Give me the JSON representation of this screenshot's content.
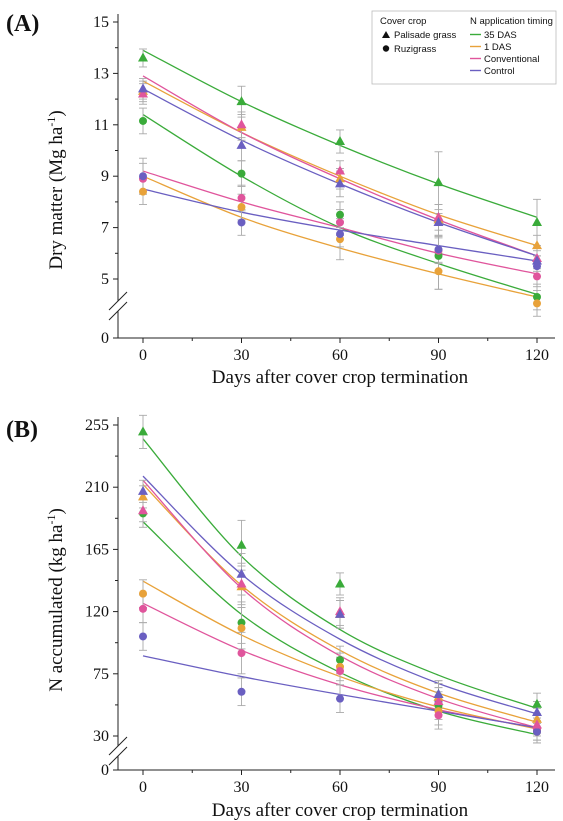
{
  "chart_data": [
    {
      "type": "scatter",
      "panel_label": "(A)",
      "xlabel": "Days after cover crop termination",
      "ylabel_main": "Dry matter (Mg ha",
      "ylabel_sup": "-1",
      "ylabel_end": ")",
      "x": [
        0,
        30,
        60,
        90,
        120
      ],
      "xticks": [
        "0",
        "30",
        "60",
        "90",
        "120"
      ],
      "yticks": [
        5,
        7,
        9,
        11,
        13,
        15
      ],
      "ylim": [
        3.8,
        15
      ],
      "axis_break": true,
      "zero_label": "0",
      "legend": {
        "position": "top-right",
        "cover_crop_title": "Cover crop",
        "cover_crop_items": [
          {
            "label": "Palisade grass",
            "marker": "triangle"
          },
          {
            "label": "Ruzigrass",
            "marker": "circle"
          }
        ],
        "timing_title": "N application timing",
        "timing_items": [
          {
            "label": "35 DAS",
            "color": "#3aab3a"
          },
          {
            "label": "1 DAS",
            "color": "#e8a23a"
          },
          {
            "label": "Conventional",
            "color": "#e0559c"
          },
          {
            "label": "Control",
            "color": "#6a5fc1"
          }
        ]
      },
      "series": [
        {
          "timing": "35 DAS",
          "cover": "Palisade grass",
          "marker": "triangle",
          "color": "#3aab3a",
          "y": [
            13.6,
            11.9,
            10.35,
            8.75,
            7.2
          ],
          "err": [
            0.35,
            0.6,
            0.45,
            1.2,
            0.9
          ],
          "fit": [
            13.9,
            11.9,
            10.2,
            8.7,
            7.4
          ]
        },
        {
          "timing": "1 DAS",
          "cover": "Palisade grass",
          "marker": "triangle",
          "color": "#e8a23a",
          "y": [
            12.3,
            10.9,
            8.9,
            7.3,
            6.3
          ],
          "err": [
            0.4,
            0.5,
            0.4,
            0.6,
            0.4
          ],
          "fit": [
            12.7,
            10.7,
            9.0,
            7.5,
            6.3
          ]
        },
        {
          "timing": "Conventional",
          "cover": "Palisade grass",
          "marker": "triangle",
          "color": "#e0559c",
          "y": [
            12.2,
            11.0,
            9.2,
            7.4,
            5.8
          ],
          "err": [
            0.4,
            0.5,
            0.4,
            0.5,
            0.4
          ],
          "fit": [
            12.9,
            10.7,
            8.9,
            7.3,
            5.9
          ]
        },
        {
          "timing": "Control",
          "cover": "Palisade grass",
          "marker": "triangle",
          "color": "#6a5fc1",
          "y": [
            12.4,
            10.2,
            8.7,
            7.2,
            5.7
          ],
          "err": [
            0.4,
            0.6,
            0.5,
            0.5,
            0.4
          ],
          "fit": [
            12.4,
            10.4,
            8.7,
            7.2,
            5.9
          ]
        },
        {
          "timing": "35 DAS",
          "cover": "Ruzigrass",
          "marker": "circle",
          "color": "#3aab3a",
          "y": [
            11.15,
            9.1,
            7.5,
            5.9,
            4.3
          ],
          "err": [
            0.5,
            0.5,
            0.5,
            1.3,
            0.5
          ],
          "fit": [
            11.4,
            9.0,
            7.0,
            5.6,
            4.4
          ]
        },
        {
          "timing": "1 DAS",
          "cover": "Ruzigrass",
          "marker": "circle",
          "color": "#e8a23a",
          "y": [
            8.4,
            7.8,
            6.55,
            5.3,
            4.05
          ],
          "err": [
            0.5,
            0.5,
            0.8,
            0.7,
            0.5
          ],
          "fit": [
            9.0,
            7.4,
            6.2,
            5.2,
            4.3
          ]
        },
        {
          "timing": "Conventional",
          "cover": "Ruzigrass",
          "marker": "circle",
          "color": "#e0559c",
          "y": [
            8.9,
            8.15,
            7.2,
            6.1,
            5.1
          ],
          "err": [
            0.6,
            0.5,
            0.5,
            0.5,
            0.4
          ],
          "fit": [
            9.2,
            8.0,
            7.0,
            6.0,
            5.2
          ]
        },
        {
          "timing": "Control",
          "cover": "Ruzigrass",
          "marker": "circle",
          "color": "#6a5fc1",
          "y": [
            9.0,
            7.2,
            6.75,
            6.15,
            5.5
          ],
          "err": [
            0.7,
            0.5,
            0.5,
            0.5,
            0.4
          ],
          "fit": [
            8.5,
            7.6,
            6.9,
            6.3,
            5.7
          ]
        }
      ]
    },
    {
      "type": "scatter",
      "panel_label": "(B)",
      "xlabel": "Days after cover crop termination",
      "ylabel_main": "N accumulated (kg ha",
      "ylabel_sup": "-1",
      "ylabel_end": ")",
      "x": [
        0,
        30,
        60,
        90,
        120
      ],
      "xticks": [
        "0",
        "30",
        "60",
        "90",
        "120"
      ],
      "yticks": [
        30,
        75,
        120,
        165,
        210,
        255
      ],
      "ylim": [
        27,
        275
      ],
      "axis_break": true,
      "zero_label": "0",
      "series": [
        {
          "timing": "35 DAS",
          "cover": "Palisade grass",
          "marker": "triangle",
          "color": "#3aab3a",
          "y": [
            250,
            168,
            140,
            60,
            53
          ],
          "err": [
            12,
            18,
            8,
            10,
            8
          ],
          "fit": [
            245,
            160,
            107,
            74,
            50
          ]
        },
        {
          "timing": "1 DAS",
          "cover": "Palisade grass",
          "marker": "triangle",
          "color": "#e8a23a",
          "y": [
            203,
            138,
            118,
            58,
            42
          ],
          "err": [
            8,
            15,
            10,
            10,
            8
          ],
          "fit": [
            212,
            139,
            92,
            61,
            40
          ]
        },
        {
          "timing": "Conventional",
          "cover": "Palisade grass",
          "marker": "triangle",
          "color": "#e0559c",
          "y": [
            193,
            140,
            120,
            55,
            38
          ],
          "err": [
            8,
            15,
            10,
            10,
            8
          ],
          "fit": [
            215,
            137,
            88,
            57,
            36
          ]
        },
        {
          "timing": "Control",
          "cover": "Palisade grass",
          "marker": "triangle",
          "color": "#6a5fc1",
          "y": [
            207,
            147,
            118,
            60,
            47
          ],
          "err": [
            8,
            15,
            10,
            10,
            8
          ],
          "fit": [
            218,
            147,
            100,
            68,
            46
          ]
        },
        {
          "timing": "35 DAS",
          "cover": "Ruzigrass",
          "marker": "circle",
          "color": "#3aab3a",
          "y": [
            191,
            112,
            85,
            52,
            35
          ],
          "err": [
            10,
            15,
            10,
            10,
            8
          ],
          "fit": [
            185,
            118,
            76,
            48,
            31
          ]
        },
        {
          "timing": "1 DAS",
          "cover": "Ruzigrass",
          "marker": "circle",
          "color": "#e8a23a",
          "y": [
            133,
            108,
            80,
            48,
            33
          ],
          "err": [
            10,
            15,
            10,
            10,
            8
          ],
          "fit": [
            142,
            103,
            73,
            51,
            35
          ]
        },
        {
          "timing": "Conventional",
          "cover": "Ruzigrass",
          "marker": "circle",
          "color": "#e0559c",
          "y": [
            122,
            90,
            77,
            45,
            35
          ],
          "err": [
            10,
            15,
            10,
            10,
            8
          ],
          "fit": [
            126,
            92,
            67,
            49,
            36
          ]
        },
        {
          "timing": "Control",
          "cover": "Ruzigrass",
          "marker": "circle",
          "color": "#6a5fc1",
          "y": [
            102,
            62,
            57,
            55,
            33
          ],
          "err": [
            10,
            10,
            10,
            10,
            8
          ],
          "fit": [
            88,
            73,
            60,
            48,
            36
          ]
        }
      ]
    }
  ]
}
